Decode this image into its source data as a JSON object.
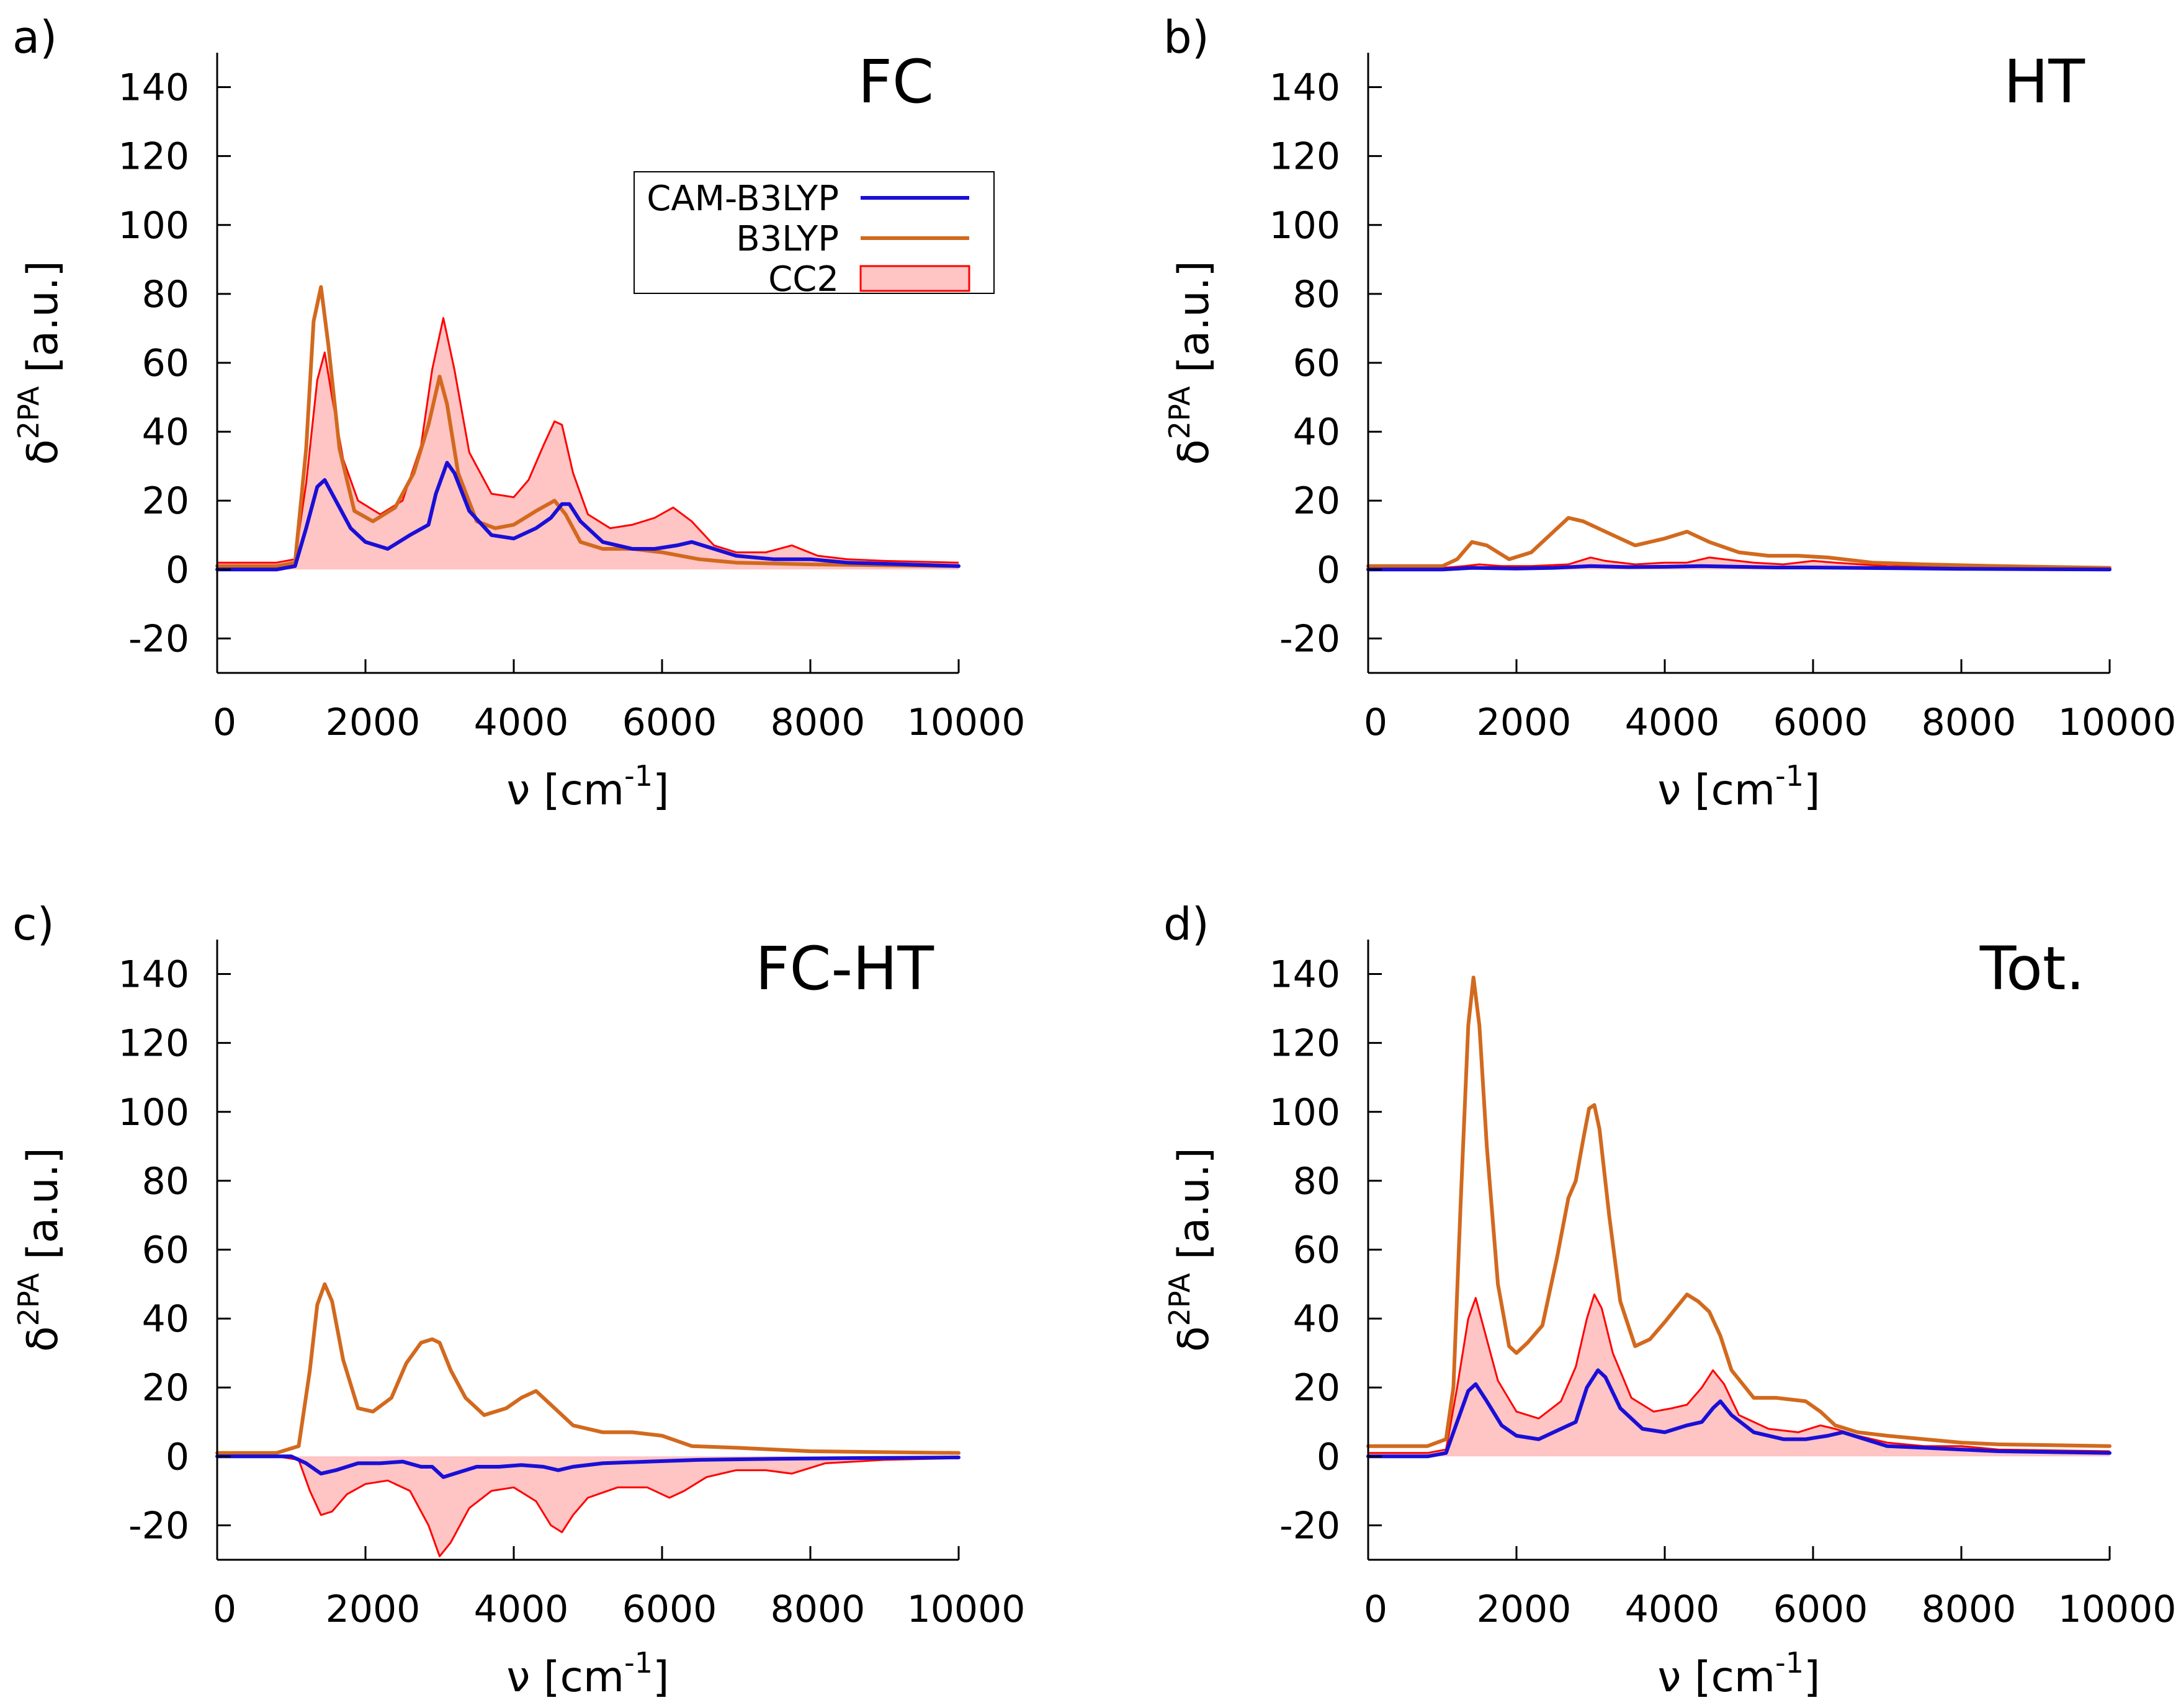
{
  "chart_data": [
    {
      "type": "line",
      "panel_label": "a)",
      "title": "FC",
      "xlabel": "ν [cm",
      "xlabel_sup": "-1",
      "xlabel_end": "]",
      "ylabel": "δ",
      "ylabel_sup": "2PA",
      "ylabel_end": " [a.u.]",
      "xlim": [
        0,
        10000
      ],
      "ylim": [
        -30,
        150
      ],
      "x_ticks": [
        0,
        2000,
        4000,
        6000,
        8000,
        10000
      ],
      "y_ticks": [
        -20,
        0,
        20,
        40,
        60,
        80,
        100,
        120,
        140
      ],
      "show_legend": true,
      "legend": [
        {
          "label": "CAM-B3LYP",
          "color": "#1a0fd6",
          "style": "line"
        },
        {
          "label": "B3LYP",
          "color": "#d2691e",
          "style": "line"
        },
        {
          "label": "CC2",
          "color": "#ff0000",
          "fill": "#ffc4c4",
          "style": "fill"
        }
      ],
      "series": [
        {
          "name": "CC2",
          "color": "#ff0000",
          "fill": "#ffc4c4",
          "kind": "fill",
          "x": [
            0,
            800,
            1050,
            1200,
            1350,
            1450,
            1550,
            1700,
            1900,
            2200,
            2500,
            2750,
            2900,
            3050,
            3200,
            3400,
            3700,
            4000,
            4200,
            4400,
            4550,
            4650,
            4800,
            5000,
            5300,
            5600,
            5900,
            6150,
            6400,
            6700,
            7000,
            7400,
            7750,
            8100,
            8500,
            9000,
            10000
          ],
          "y": [
            2,
            2,
            3,
            25,
            55,
            63,
            50,
            32,
            20,
            16,
            20,
            36,
            58,
            73,
            58,
            34,
            22,
            21,
            26,
            36,
            43,
            42,
            28,
            16,
            12,
            13,
            15,
            18,
            14,
            7,
            5,
            5,
            7,
            4,
            3,
            2.5,
            2
          ]
        },
        {
          "name": "B3LYP",
          "color": "#d2691e",
          "kind": "line",
          "x": [
            0,
            800,
            1050,
            1200,
            1300,
            1400,
            1500,
            1650,
            1850,
            2100,
            2400,
            2650,
            2850,
            3000,
            3100,
            3250,
            3500,
            3750,
            4000,
            4300,
            4550,
            4700,
            4900,
            5200,
            5600,
            6000,
            6500,
            7000,
            8000,
            10000
          ],
          "y": [
            1,
            1,
            2,
            35,
            72,
            82,
            65,
            35,
            17,
            14,
            18,
            28,
            42,
            56,
            48,
            28,
            14,
            12,
            13,
            17,
            20,
            16,
            8,
            6,
            6,
            5,
            3,
            2,
            1.5,
            1
          ]
        },
        {
          "name": "CAM-B3LYP",
          "color": "#1a0fd6",
          "kind": "line",
          "x": [
            0,
            800,
            1050,
            1200,
            1350,
            1450,
            1600,
            1800,
            2000,
            2300,
            2600,
            2850,
            2950,
            3100,
            3200,
            3400,
            3700,
            4000,
            4300,
            4500,
            4650,
            4750,
            4900,
            5200,
            5600,
            5900,
            6200,
            6400,
            6700,
            7000,
            7500,
            8000,
            8500,
            10000
          ],
          "y": [
            0,
            0,
            1,
            12,
            24,
            26,
            20,
            12,
            8,
            6,
            10,
            13,
            22,
            31,
            28,
            17,
            10,
            9,
            12,
            15,
            19,
            19,
            14,
            8,
            6,
            6,
            7,
            8,
            6,
            4,
            3,
            3,
            2,
            1
          ]
        }
      ]
    },
    {
      "type": "line",
      "panel_label": "b)",
      "title": "HT",
      "xlabel": "ν [cm",
      "xlabel_sup": "-1",
      "xlabel_end": "]",
      "ylabel": "δ",
      "ylabel_sup": "2PA",
      "ylabel_end": " [a.u.]",
      "xlim": [
        0,
        10000
      ],
      "ylim": [
        -30,
        150
      ],
      "x_ticks": [
        0,
        2000,
        4000,
        6000,
        8000,
        10000
      ],
      "y_ticks": [
        -20,
        0,
        20,
        40,
        60,
        80,
        100,
        120,
        140
      ],
      "show_legend": false,
      "series": [
        {
          "name": "CC2",
          "color": "#ff0000",
          "fill": "#ffc4c4",
          "kind": "fill",
          "x": [
            0,
            1000,
            1300,
            1500,
            1800,
            2200,
            2700,
            3000,
            3200,
            3600,
            4000,
            4300,
            4600,
            4800,
            5200,
            5600,
            6000,
            6300,
            7000,
            8000,
            10000
          ],
          "y": [
            0.5,
            0.5,
            1,
            1.5,
            1,
            1,
            1.5,
            3.5,
            2.5,
            1.5,
            2,
            2,
            3.5,
            3,
            2,
            1.5,
            2.5,
            2,
            1,
            0.7,
            0.5
          ]
        },
        {
          "name": "B3LYP",
          "color": "#d2691e",
          "kind": "line",
          "x": [
            0,
            1000,
            1200,
            1400,
            1600,
            1900,
            2200,
            2500,
            2700,
            2900,
            3100,
            3300,
            3600,
            4000,
            4300,
            4600,
            5000,
            5400,
            5800,
            6200,
            6800,
            7500,
            8500,
            10000
          ],
          "y": [
            1,
            1,
            3,
            8,
            7,
            3,
            5,
            11,
            15,
            14,
            12,
            10,
            7,
            9,
            11,
            8,
            5,
            4,
            4,
            3.5,
            2,
            1.5,
            1,
            0.5
          ]
        },
        {
          "name": "CAM-B3LYP",
          "color": "#1a0fd6",
          "kind": "line",
          "x": [
            0,
            1000,
            1400,
            2000,
            2500,
            3000,
            3500,
            4000,
            4500,
            5000,
            5500,
            6000,
            7000,
            8000,
            10000
          ],
          "y": [
            0,
            0,
            0.5,
            0.3,
            0.5,
            1,
            0.7,
            0.8,
            1,
            0.8,
            0.6,
            0.6,
            0.4,
            0.2,
            0
          ]
        }
      ]
    },
    {
      "type": "line",
      "panel_label": "c)",
      "title": "FC-HT",
      "xlabel": "ν [cm",
      "xlabel_sup": "-1",
      "xlabel_end": "]",
      "ylabel": "δ",
      "ylabel_sup": "2PA",
      "ylabel_end": " [a.u.]",
      "xlim": [
        0,
        10000
      ],
      "ylim": [
        -30,
        150
      ],
      "x_ticks": [
        0,
        2000,
        4000,
        6000,
        8000,
        10000
      ],
      "y_ticks": [
        -20,
        0,
        20,
        40,
        60,
        80,
        100,
        120,
        140
      ],
      "show_legend": false,
      "series": [
        {
          "name": "CC2",
          "color": "#ff0000",
          "fill": "#ffc4c4",
          "kind": "fill",
          "x": [
            0,
            800,
            1100,
            1250,
            1400,
            1550,
            1750,
            2000,
            2300,
            2600,
            2850,
            3000,
            3150,
            3400,
            3700,
            4000,
            4300,
            4500,
            4650,
            4800,
            5000,
            5400,
            5800,
            6100,
            6300,
            6600,
            7000,
            7400,
            7750,
            8200,
            9000,
            10000
          ],
          "y": [
            0,
            0,
            -1,
            -10,
            -17,
            -16,
            -11,
            -8,
            -7,
            -10,
            -20,
            -29,
            -25,
            -15,
            -10,
            -9,
            -13,
            -20,
            -22,
            -17,
            -12,
            -9,
            -9,
            -12,
            -10,
            -6,
            -4,
            -4,
            -5,
            -2,
            -1,
            -0.5
          ]
        },
        {
          "name": "B3LYP",
          "color": "#d2691e",
          "kind": "line",
          "x": [
            0,
            800,
            1100,
            1250,
            1350,
            1450,
            1550,
            1700,
            1900,
            2100,
            2350,
            2550,
            2750,
            2900,
            3000,
            3150,
            3350,
            3600,
            3900,
            4100,
            4300,
            4500,
            4800,
            5200,
            5600,
            6000,
            6400,
            7000,
            8000,
            10000
          ],
          "y": [
            1,
            1,
            3,
            25,
            44,
            50,
            45,
            28,
            14,
            13,
            17,
            27,
            33,
            34,
            33,
            25,
            17,
            12,
            14,
            17,
            19,
            15,
            9,
            7,
            7,
            6,
            3,
            2.5,
            1.5,
            1
          ]
        },
        {
          "name": "CAM-B3LYP",
          "color": "#1a0fd6",
          "kind": "line",
          "x": [
            0,
            1000,
            1200,
            1400,
            1600,
            1900,
            2200,
            2500,
            2750,
            2900,
            3050,
            3200,
            3500,
            3800,
            4100,
            4400,
            4600,
            4800,
            5200,
            5800,
            6500,
            7500,
            8500,
            10000
          ],
          "y": [
            0,
            0,
            -2,
            -5,
            -4,
            -2,
            -2,
            -1.5,
            -3,
            -3,
            -6,
            -5,
            -3,
            -3,
            -2.5,
            -3,
            -4,
            -3,
            -2,
            -1.5,
            -1,
            -0.7,
            -0.5,
            -0.3
          ]
        }
      ]
    },
    {
      "type": "line",
      "panel_label": "d)",
      "title": "Tot.",
      "xlabel": "ν [cm",
      "xlabel_sup": "-1",
      "xlabel_end": "]",
      "ylabel": "δ",
      "ylabel_sup": "2PA",
      "ylabel_end": " [a.u.]",
      "xlim": [
        0,
        10000
      ],
      "ylim": [
        -30,
        150
      ],
      "x_ticks": [
        0,
        2000,
        4000,
        6000,
        8000,
        10000
      ],
      "y_ticks": [
        -20,
        0,
        20,
        40,
        60,
        80,
        100,
        120,
        140
      ],
      "show_legend": false,
      "series": [
        {
          "name": "CC2",
          "color": "#ff0000",
          "fill": "#ffc4c4",
          "kind": "fill",
          "x": [
            0,
            800,
            1050,
            1200,
            1350,
            1450,
            1550,
            1750,
            2000,
            2300,
            2600,
            2800,
            2950,
            3050,
            3150,
            3300,
            3550,
            3850,
            4100,
            4300,
            4500,
            4650,
            4800,
            5000,
            5400,
            5800,
            6100,
            6300,
            6600,
            7000,
            7500,
            8000,
            8500,
            10000
          ],
          "y": [
            1,
            1,
            2,
            20,
            40,
            46,
            38,
            22,
            13,
            11,
            16,
            26,
            40,
            47,
            43,
            30,
            17,
            13,
            14,
            15,
            20,
            25,
            21,
            12,
            8,
            7,
            9,
            8,
            6,
            4,
            3,
            3,
            2,
            1.5
          ]
        },
        {
          "name": "B3LYP",
          "color": "#d2691e",
          "kind": "line",
          "x": [
            0,
            800,
            1050,
            1150,
            1250,
            1350,
            1420,
            1500,
            1600,
            1750,
            1900,
            2000,
            2150,
            2350,
            2550,
            2700,
            2800,
            2900,
            2980,
            3050,
            3120,
            3250,
            3400,
            3600,
            3800,
            4000,
            4150,
            4300,
            4450,
            4600,
            4750,
            4900,
            5200,
            5500,
            5900,
            6100,
            6300,
            6600,
            7000,
            7500,
            8000,
            8500,
            10000
          ],
          "y": [
            3,
            3,
            5,
            20,
            75,
            125,
            139,
            125,
            90,
            50,
            32,
            30,
            33,
            38,
            58,
            75,
            80,
            92,
            101,
            102,
            95,
            70,
            45,
            32,
            34,
            39,
            43,
            47,
            45,
            42,
            35,
            25,
            17,
            17,
            16,
            13,
            9,
            7,
            6,
            5,
            4,
            3.5,
            3
          ]
        },
        {
          "name": "CAM-B3LYP",
          "color": "#1a0fd6",
          "kind": "line",
          "x": [
            0,
            800,
            1050,
            1200,
            1350,
            1450,
            1600,
            1800,
            2000,
            2300,
            2600,
            2800,
            2950,
            3100,
            3200,
            3400,
            3700,
            4000,
            4300,
            4500,
            4650,
            4750,
            4900,
            5200,
            5600,
            5900,
            6200,
            6400,
            6700,
            7000,
            7500,
            8000,
            8500,
            10000
          ],
          "y": [
            0,
            0,
            1,
            10,
            19,
            21,
            16,
            9,
            6,
            5,
            8,
            10,
            20,
            25,
            23,
            14,
            8,
            7,
            9,
            10,
            14,
            16,
            12,
            7,
            5,
            5,
            6,
            7,
            5,
            3,
            2.5,
            2,
            1.5,
            1
          ]
        }
      ]
    }
  ]
}
